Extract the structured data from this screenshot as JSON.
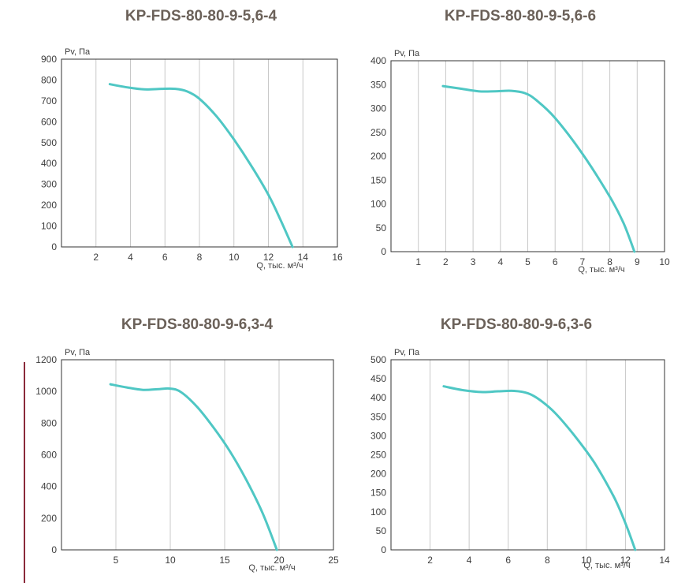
{
  "colors": {
    "curve": "#4fc7c4",
    "title": "#6b6159",
    "grid": "#c8c8c8",
    "accent_line": "#8a2a3a"
  },
  "chart_data": [
    {
      "type": "line",
      "title": "KP-FDS-80-80-9-5,6-4",
      "ylabel": "Pv, Па",
      "xlabel": "Q, тыс. м³/ч",
      "xlim": [
        0,
        16
      ],
      "ylim": [
        0,
        900
      ],
      "xticks": [
        2,
        4,
        6,
        8,
        10,
        12,
        14,
        16
      ],
      "yticks": [
        0,
        100,
        200,
        300,
        400,
        500,
        600,
        700,
        800,
        900
      ],
      "grid": "vertical",
      "series": [
        {
          "x": [
            2.8,
            3.8,
            4.8,
            5.8,
            6.6,
            7.3,
            8.0,
            9.0,
            10.0,
            11.0,
            12.0,
            12.7,
            13.4
          ],
          "y": [
            780,
            765,
            755,
            758,
            758,
            745,
            710,
            625,
            515,
            390,
            250,
            130,
            0
          ]
        }
      ]
    },
    {
      "type": "line",
      "title": "KP-FDS-80-80-9-5,6-6",
      "ylabel": "Pv, Па",
      "xlabel": "Q, тыс. м³/ч",
      "xlim": [
        0,
        10
      ],
      "ylim": [
        0,
        400
      ],
      "xticks": [
        1,
        2,
        3,
        4,
        5,
        6,
        7,
        8,
        9,
        10
      ],
      "yticks": [
        0,
        50,
        100,
        150,
        200,
        250,
        300,
        350,
        400
      ],
      "grid": "vertical",
      "series": [
        {
          "x": [
            1.9,
            2.5,
            3.2,
            3.8,
            4.4,
            4.9,
            5.3,
            6.0,
            7.0,
            8.0,
            8.5,
            8.9
          ],
          "y": [
            347,
            342,
            336,
            336,
            337,
            332,
            318,
            280,
            205,
            115,
            60,
            0
          ]
        }
      ]
    },
    {
      "type": "line",
      "title": "KP-FDS-80-80-9-6,3-4",
      "ylabel": "Pv, Па",
      "xlabel": "Q, тыс. м³/ч",
      "xlim": [
        0,
        25
      ],
      "ylim": [
        0,
        1200
      ],
      "xticks": [
        5,
        10,
        15,
        20,
        25
      ],
      "yticks": [
        0,
        200,
        400,
        600,
        800,
        1000,
        1200
      ],
      "grid": "vertical",
      "series": [
        {
          "x": [
            4.5,
            6.0,
            7.5,
            9.0,
            10.0,
            11.0,
            12.5,
            14.0,
            15.5,
            17.0,
            18.5,
            19.8
          ],
          "y": [
            1045,
            1025,
            1010,
            1015,
            1018,
            995,
            900,
            770,
            620,
            440,
            230,
            0
          ]
        }
      ]
    },
    {
      "type": "line",
      "title": "KP-FDS-80-80-9-6,3-6",
      "ylabel": "Pv, Па",
      "xlabel": "Q, тыс. м³/ч",
      "xlim": [
        0,
        14
      ],
      "ylim": [
        0,
        500
      ],
      "xticks": [
        2,
        4,
        6,
        8,
        10,
        12,
        14
      ],
      "yticks": [
        0,
        50,
        100,
        150,
        200,
        250,
        300,
        350,
        400,
        450,
        500
      ],
      "grid": "vertical",
      "series": [
        {
          "x": [
            2.7,
            3.7,
            4.7,
            5.5,
            6.3,
            7.0,
            7.6,
            8.4,
            9.4,
            10.4,
            11.4,
            12.0,
            12.5
          ],
          "y": [
            430,
            420,
            415,
            417,
            418,
            412,
            395,
            360,
            300,
            230,
            140,
            70,
            0
          ]
        }
      ]
    }
  ]
}
